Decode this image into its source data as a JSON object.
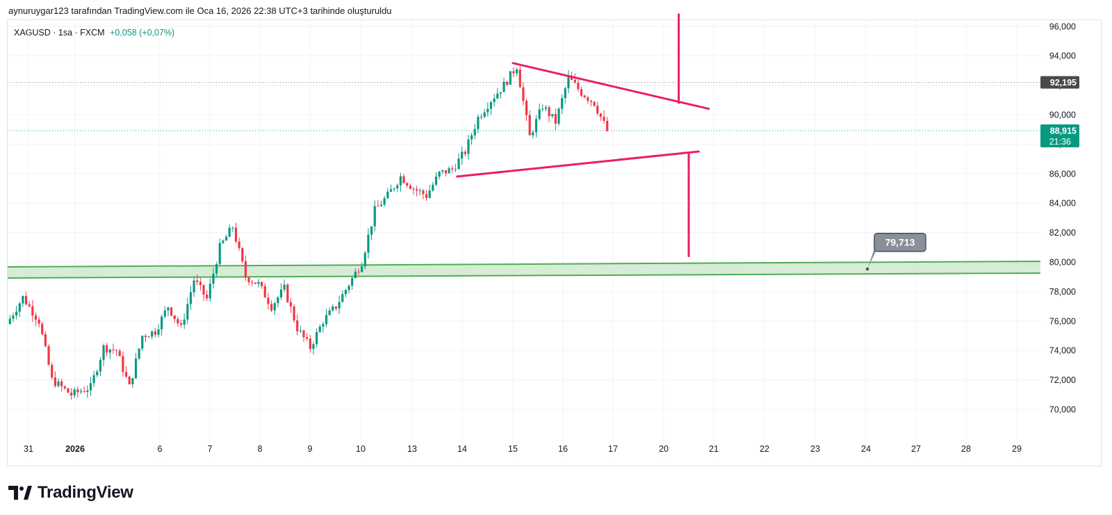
{
  "header": {
    "caption": "aynuruygar123 tarafından TradingView.com ile Oca 16, 2026 22:38 UTC+3 tarihinde oluşturuldu"
  },
  "legend": {
    "symbol": "XAGUSD · 1sa · FXCM",
    "change": "+0,058 (+0,07%)"
  },
  "brand": {
    "name": "TradingView"
  },
  "colors": {
    "up": "#089981",
    "down": "#f23645",
    "pattern": "#e91e63",
    "zone_fill": "#c8e6c9",
    "zone_line": "#4caf50",
    "price_label": "#089981",
    "ref_label": "#4a4a4a"
  },
  "chart_data": {
    "type": "candlestick",
    "symbol": "XAGUSD",
    "interval": "1sa",
    "ylim": [
      68.5,
      96.7
    ],
    "y_ticks": [
      "70,000",
      "72,000",
      "74,000",
      "76,000",
      "78,000",
      "80,000",
      "82,000",
      "84,000",
      "86,000",
      "88,000",
      "90,000",
      "92,000",
      "94,000",
      "96,000"
    ],
    "x_ticks": [
      "31",
      "2026",
      "6",
      "7",
      "8",
      "9",
      "10",
      "13",
      "14",
      "15",
      "16",
      "17",
      "20",
      "21",
      "22",
      "23",
      "24",
      "27",
      "28",
      "29"
    ],
    "price_path": [
      [
        0,
        75.8
      ],
      [
        5,
        77.6
      ],
      [
        10,
        76.0
      ],
      [
        14,
        72.0
      ],
      [
        20,
        71.0
      ],
      [
        26,
        71.5
      ],
      [
        30,
        74.2
      ],
      [
        34,
        74.0
      ],
      [
        38,
        71.5
      ],
      [
        42,
        75.0
      ],
      [
        46,
        75.3
      ],
      [
        50,
        77.0
      ],
      [
        54,
        75.5
      ],
      [
        58,
        78.8
      ],
      [
        62,
        77.5
      ],
      [
        66,
        81.0
      ],
      [
        70,
        82.4
      ],
      [
        74,
        79.0
      ],
      [
        78,
        78.5
      ],
      [
        82,
        77.0
      ],
      [
        86,
        78.2
      ],
      [
        90,
        75.5
      ],
      [
        94,
        74.2
      ],
      [
        98,
        76.0
      ],
      [
        102,
        77.0
      ],
      [
        106,
        78.5
      ],
      [
        110,
        80.0
      ],
      [
        114,
        83.5
      ],
      [
        118,
        84.5
      ],
      [
        122,
        85.8
      ],
      [
        126,
        85.0
      ],
      [
        130,
        84.5
      ],
      [
        134,
        86.0
      ],
      [
        138,
        86.3
      ],
      [
        142,
        87.5
      ],
      [
        146,
        89.8
      ],
      [
        150,
        91.0
      ],
      [
        154,
        92.0
      ],
      [
        158,
        93.3
      ],
      [
        162,
        88.5
      ],
      [
        166,
        90.6
      ],
      [
        170,
        89.5
      ],
      [
        174,
        92.5
      ],
      [
        178,
        91.5
      ],
      [
        182,
        90.8
      ],
      [
        186,
        88.9
      ]
    ],
    "price_path_x_range": [
      0,
      186
    ],
    "price_path_y_range": [
      70,
      94
    ],
    "last_price": "88,915",
    "last_countdown": "21:36",
    "ref_line": {
      "value": 92.195,
      "label": "92,195"
    },
    "support_zone": {
      "low": 79.2,
      "high": 80.0
    },
    "zone_label": "79,713",
    "triangle": {
      "upper": [
        [
          15.0,
          93.5
        ],
        [
          20.9,
          90.4
        ]
      ],
      "lower": [
        [
          13.9,
          85.8
        ],
        [
          20.7,
          87.5
        ]
      ],
      "breakout_up": [
        [
          20.3,
          90.8
        ],
        [
          20.3,
          96.8
        ]
      ],
      "breakout_down": [
        [
          20.5,
          87.3
        ],
        [
          20.5,
          80.4
        ]
      ]
    }
  }
}
